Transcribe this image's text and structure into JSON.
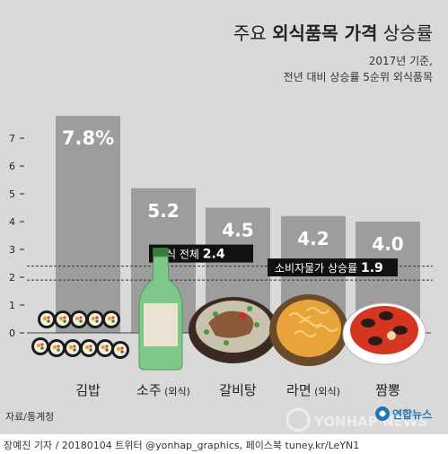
{
  "chart_data": {
    "type": "bar",
    "title_prefix": "주요 ",
    "title_emphasis": "외식품목 가격",
    "title_suffix": " 상승률",
    "subtitle_line1": "2017년 기준,",
    "subtitle_line2": "전년 대비 상승률 5순위 외식품목",
    "categories": [
      {
        "name": "김밥",
        "note": ""
      },
      {
        "name": "소주",
        "note": "(외식)"
      },
      {
        "name": "갈비탕",
        "note": ""
      },
      {
        "name": "라면",
        "note": "(외식)"
      },
      {
        "name": "짬뽕",
        "note": ""
      }
    ],
    "values": [
      7.8,
      5.2,
      4.5,
      4.2,
      4.0
    ],
    "value_labels": [
      "7.8%",
      "5.2",
      "4.5",
      "4.2",
      "4.0"
    ],
    "ylim": [
      0,
      7
    ],
    "yticks": [
      "0",
      "1",
      "2",
      "3",
      "4",
      "5",
      "6",
      "7"
    ],
    "references": [
      {
        "label": "외식 전체",
        "value_text": "2.4",
        "value": 2.4
      },
      {
        "label": "소비자물가 상승률",
        "value_text": "1.9",
        "value": 1.9
      }
    ],
    "colors": {
      "background": "#d9d9d9",
      "bar": "#9d9d9d",
      "ref_label": "#111111",
      "bar_label": "#ffffff",
      "accent": "#1f74b8"
    }
  },
  "source": "자료/통계청",
  "watermark": "YONHAP NEWS",
  "logo": "연합뉴스",
  "credit": "장예진 기자 / 20180104 트위터 @yonhap_graphics, 페이스북 tuney.kr/LeYN1"
}
